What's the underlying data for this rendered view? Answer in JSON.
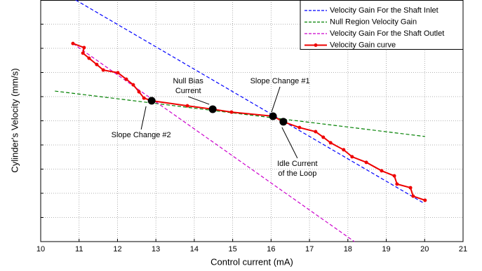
{
  "chart_data": {
    "type": "line",
    "xlabel": "Control current (mA)",
    "ylabel": "Cylinder's Velocity (mm/s)",
    "xlim": [
      10,
      21
    ],
    "xticks": [
      10,
      11,
      12,
      13,
      14,
      15,
      16,
      17,
      18,
      19,
      20,
      21
    ],
    "ylim": [
      0,
      10
    ],
    "yticks": [
      0,
      1,
      2,
      3,
      4,
      5,
      6,
      7,
      8,
      9,
      10
    ],
    "grid": true,
    "legend": "upper right",
    "series": [
      {
        "name": "Velocity Gain For the Shaft Inlet",
        "color": "#0000ff",
        "linestyle": "dashed",
        "x": [
          10.91,
          19.98
        ],
        "values": [
          10,
          1.59
        ]
      },
      {
        "name": "Null Region Velocity Gain",
        "color": "#008000",
        "linestyle": "dashed",
        "x": [
          10.37,
          20.01
        ],
        "values": [
          6.23,
          4.35
        ]
      },
      {
        "name": "Velocity Gain For the Shaft Outlet",
        "color": "#cc00cc",
        "linestyle": "dashed",
        "x": [
          10.84,
          18.17
        ],
        "values": [
          8.2,
          0
        ]
      },
      {
        "name": "Velocity Gain curve",
        "color": "#ee0000",
        "linestyle": "solid",
        "marker": true,
        "x": [
          10.84,
          11.13,
          11.1,
          11.26,
          11.46,
          11.63,
          12.01,
          12.23,
          12.41,
          12.56,
          12.69,
          12.89,
          13.82,
          14.48,
          14.97,
          16.05,
          16.32,
          16.74,
          17.16,
          17.36,
          17.55,
          17.89,
          18.11,
          18.48,
          18.88,
          19.21,
          19.28,
          19.63,
          19.7,
          20.01
        ],
        "values": [
          8.2,
          8.03,
          7.8,
          7.59,
          7.33,
          7.1,
          6.99,
          6.72,
          6.49,
          6.2,
          5.94,
          5.83,
          5.62,
          5.48,
          5.36,
          5.19,
          4.96,
          4.72,
          4.55,
          4.32,
          4.09,
          3.8,
          3.51,
          3.28,
          2.93,
          2.72,
          2.38,
          2.23,
          1.88,
          1.71
        ]
      }
    ],
    "annotations": [
      {
        "text": [
          "Slope Change #2"
        ],
        "x": 12.89,
        "y": 5.83
      },
      {
        "text": [
          "Null Bias",
          "Current"
        ],
        "x": 14.48,
        "y": 5.48
      },
      {
        "text": [
          "Slope Change #1"
        ],
        "x": 16.05,
        "y": 5.19
      },
      {
        "text": [
          "Idle Current",
          "of the Loop"
        ],
        "x": 16.32,
        "y": 4.96
      }
    ]
  }
}
